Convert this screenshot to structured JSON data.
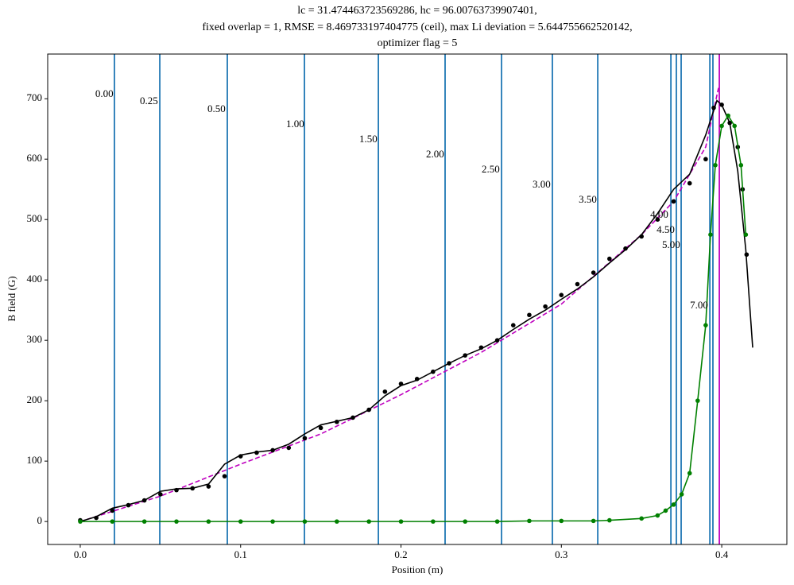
{
  "chart_data": {
    "type": "line",
    "title": [
      "lc = 31.474463723569286, hc = 96.00763739907401,",
      "fixed overlap = 1, RMSE = 8.469733197404775 (ceil), max Li deviation = 5.644755662520142,",
      "optimizer flag = 5"
    ],
    "xlabel": "Position (m)",
    "ylabel": "B field (G)",
    "xlim": [
      -0.0203,
      0.4406
    ],
    "ylim": [
      -38,
      774
    ],
    "xticks": [
      {
        "value": 0,
        "label": "0.0"
      },
      0.1,
      0.2,
      0.3,
      0.4
    ],
    "yticks": [
      0,
      100,
      200,
      300,
      400,
      500,
      600,
      700
    ],
    "series": [
      {
        "color": "#bf00bf",
        "line": "dashed",
        "marker": false,
        "x": [
          0,
          0.05,
          0.1,
          0.15,
          0.2,
          0.25,
          0.3,
          0.35,
          0.37,
          0.39,
          0.398
        ],
        "values": [
          0,
          42,
          95,
          145,
          210,
          280,
          360,
          475,
          530,
          620,
          718
        ]
      },
      {
        "color": "#000000",
        "line": "solid",
        "marker": false,
        "x": [
          0,
          0.01,
          0.02,
          0.03,
          0.04,
          0.05,
          0.06,
          0.07,
          0.08,
          0.09,
          0.1,
          0.11,
          0.12,
          0.13,
          0.14,
          0.15,
          0.16,
          0.17,
          0.18,
          0.19,
          0.2,
          0.21,
          0.22,
          0.23,
          0.24,
          0.25,
          0.26,
          0.27,
          0.28,
          0.29,
          0.3,
          0.31,
          0.32,
          0.33,
          0.34,
          0.35,
          0.36,
          0.37,
          0.38,
          0.39,
          0.397,
          0.4,
          0.405,
          0.41,
          0.415,
          0.4193
        ],
        "values": [
          0,
          8,
          22,
          28,
          35,
          50,
          54,
          55,
          62,
          95,
          110,
          115,
          118,
          128,
          145,
          160,
          166,
          172,
          185,
          208,
          225,
          234,
          248,
          262,
          275,
          286,
          300,
          318,
          335,
          350,
          368,
          385,
          405,
          428,
          450,
          475,
          510,
          550,
          575,
          640,
          697,
          690,
          660,
          580,
          450,
          288
        ]
      },
      {
        "color": "#000000",
        "line": null,
        "marker": true,
        "x": [
          0,
          0.01,
          0.02,
          0.03,
          0.04,
          0.05,
          0.06,
          0.07,
          0.08,
          0.09,
          0.1,
          0.11,
          0.12,
          0.13,
          0.14,
          0.15,
          0.16,
          0.17,
          0.18,
          0.19,
          0.2,
          0.21,
          0.22,
          0.23,
          0.24,
          0.25,
          0.26,
          0.27,
          0.28,
          0.29,
          0.3,
          0.31,
          0.32,
          0.33,
          0.34,
          0.35,
          0.36,
          0.37,
          0.38,
          0.39,
          0.395,
          0.4,
          0.405,
          0.41,
          0.413,
          0.4155
        ],
        "values": [
          2,
          6,
          18,
          27,
          35,
          45,
          52,
          55,
          58,
          75,
          108,
          114,
          118,
          122,
          138,
          155,
          165,
          172,
          185,
          215,
          228,
          236,
          248,
          262,
          275,
          288,
          300,
          325,
          342,
          356,
          375,
          393,
          412,
          435,
          452,
          472,
          500,
          530,
          560,
          600,
          685,
          690,
          660,
          620,
          550,
          442
        ]
      },
      {
        "color": "#008000",
        "line": "solid",
        "marker": true,
        "x": [
          0,
          0.02,
          0.04,
          0.06,
          0.08,
          0.1,
          0.12,
          0.14,
          0.16,
          0.18,
          0.2,
          0.22,
          0.24,
          0.26,
          0.28,
          0.3,
          0.32,
          0.33,
          0.35,
          0.36,
          0.365,
          0.37,
          0.375,
          0.38,
          0.385,
          0.39,
          0.393,
          0.396,
          0.4,
          0.404,
          0.408,
          0.412,
          0.415
        ],
        "values": [
          0,
          0,
          0,
          0,
          0,
          0,
          0,
          0,
          0,
          0,
          0,
          0,
          0,
          0,
          1,
          1,
          1,
          2,
          5,
          10,
          18,
          28,
          45,
          80,
          200,
          325,
          475,
          590,
          655,
          672,
          655,
          590,
          475
        ]
      }
    ],
    "vlines": [
      {
        "color": "#1f77b4",
        "x": [
          0.0213,
          0.0496,
          0.0917,
          0.1398,
          0.1859,
          0.2275,
          0.2627,
          0.2944,
          0.3227,
          0.3683,
          0.3717,
          0.3747,
          0.3926,
          0.3945
        ]
      },
      {
        "color": "#bf00bf",
        "x": [
          0.3985
        ]
      }
    ],
    "annotations": [
      {
        "text": "0.00",
        "x": 0.0094,
        "y": 706.6
      },
      {
        "text": "0.25",
        "x": 0.0372,
        "y": 694.7
      },
      {
        "text": "0.50",
        "x": 0.0793,
        "y": 681.6
      },
      {
        "text": "1.00",
        "x": 0.1284,
        "y": 656.6
      },
      {
        "text": "1.50",
        "x": 0.174,
        "y": 631.6
      },
      {
        "text": "2.00",
        "x": 0.2156,
        "y": 606.6
      },
      {
        "text": "2.50",
        "x": 0.2503,
        "y": 581.6
      },
      {
        "text": "3.00",
        "x": 0.282,
        "y": 556.6
      },
      {
        "text": "3.50",
        "x": 0.3108,
        "y": 531.6
      },
      {
        "text": "4.00",
        "x": 0.3554,
        "y": 506.6
      },
      {
        "text": "4.50",
        "x": 0.3594,
        "y": 481.6
      },
      {
        "text": "5.00",
        "x": 0.3628,
        "y": 456.6
      },
      {
        "text": "7.00",
        "x": 0.3802,
        "y": 356.6
      }
    ]
  }
}
